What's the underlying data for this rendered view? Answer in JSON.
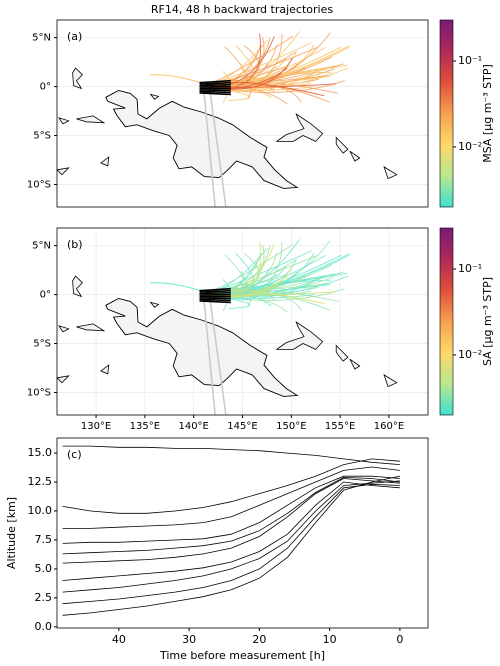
{
  "title": "RF14, 48 h backward trajectories",
  "chart_data": [
    {
      "type": "map",
      "panel_label": "(a)",
      "xlim": [
        126,
        164
      ],
      "ylim": [
        -12.3,
        6.8
      ],
      "yticks": [
        {
          "value": 5,
          "label": "5°N"
        },
        {
          "value": 0,
          "label": "0°"
        },
        {
          "value": -5,
          "label": "5°S"
        },
        {
          "value": -10,
          "label": "10°S"
        }
      ],
      "grid": true,
      "trajectory_colors": [
        "#fbc46c",
        "#f4a45c",
        "#e05a3c"
      ],
      "colorbar": {
        "label": "MSA [μg m⁻³ STP]",
        "clim": [
          0.002,
          0.3
        ],
        "log": true,
        "ticks": [
          {
            "value": 0.1,
            "label": "10⁻¹"
          },
          {
            "value": 0.01,
            "label": "10⁻²"
          }
        ],
        "colors": [
          "#40e0d0",
          "#b8e890",
          "#ffd766",
          "#f9a050",
          "#e0503a",
          "#b02858",
          "#7a1a78"
        ]
      }
    },
    {
      "type": "map",
      "panel_label": "(b)",
      "xlim": [
        126,
        164
      ],
      "ylim": [
        -12.3,
        6.8
      ],
      "xticks": [
        {
          "value": 130,
          "label": "130°E"
        },
        {
          "value": 135,
          "label": "135°E"
        },
        {
          "value": 140,
          "label": "140°E"
        },
        {
          "value": 145,
          "label": "145°E"
        },
        {
          "value": 150,
          "label": "150°E"
        },
        {
          "value": 155,
          "label": "155°E"
        },
        {
          "value": 160,
          "label": "160°E"
        }
      ],
      "yticks": [
        {
          "value": 5,
          "label": "5°N"
        },
        {
          "value": 0,
          "label": "0°"
        },
        {
          "value": -5,
          "label": "5°S"
        },
        {
          "value": -10,
          "label": "10°S"
        }
      ],
      "grid": true,
      "trajectory_colors": [
        "#6ee8d0",
        "#9fe6a8",
        "#d8e070"
      ],
      "colorbar": {
        "label": "SA [μg m⁻³ STP]",
        "clim": [
          0.002,
          0.3
        ],
        "log": true,
        "ticks": [
          {
            "value": 0.1,
            "label": "10⁻¹"
          },
          {
            "value": 0.01,
            "label": "10⁻²"
          }
        ],
        "colors": [
          "#40e0d0",
          "#b8e890",
          "#ffd766",
          "#f9a050",
          "#e0503a",
          "#b02858",
          "#7a1a78"
        ]
      }
    },
    {
      "type": "line",
      "panel_label": "(c)",
      "x_label": "Time before measurement [h]",
      "y_label": "Altitude [km]",
      "x": [
        48,
        44,
        40,
        36,
        32,
        28,
        24,
        20,
        16,
        12,
        8,
        4,
        0
      ],
      "xlim": [
        48.8,
        -4
      ],
      "xticks": [
        40,
        30,
        20,
        10,
        0
      ],
      "ylim": [
        -0.1,
        16.3
      ],
      "yticks": [
        {
          "value": 0,
          "label": "0.0"
        },
        2.5,
        {
          "value": 5,
          "label": "5.0"
        },
        7.5,
        {
          "value": 10,
          "label": "10.0"
        },
        12.5,
        {
          "value": 15,
          "label": "15.0"
        }
      ],
      "color": "#000000",
      "series": [
        {
          "values": [
            15.6,
            15.6,
            15.5,
            15.5,
            15.4,
            15.4,
            15.3,
            15.2,
            15.0,
            14.8,
            14.5,
            14.2,
            14.0
          ]
        },
        {
          "values": [
            10.4,
            10.0,
            9.8,
            9.8,
            10.0,
            10.3,
            10.8,
            11.5,
            12.2,
            13.0,
            14.0,
            14.5,
            14.3
          ]
        },
        {
          "values": [
            8.5,
            8.5,
            8.6,
            8.7,
            8.8,
            9.0,
            9.5,
            10.5,
            11.5,
            12.5,
            13.5,
            13.8,
            13.5
          ]
        },
        {
          "values": [
            7.2,
            7.3,
            7.3,
            7.4,
            7.5,
            7.6,
            8.0,
            9.0,
            10.5,
            12.0,
            13.0,
            13.0,
            12.8
          ]
        },
        {
          "values": [
            6.3,
            6.4,
            6.5,
            6.6,
            6.8,
            7.0,
            7.4,
            8.3,
            9.8,
            11.6,
            12.9,
            12.8,
            12.5
          ]
        },
        {
          "values": [
            5.5,
            5.6,
            5.7,
            5.8,
            6.0,
            6.3,
            6.8,
            7.8,
            9.5,
            11.5,
            12.8,
            12.6,
            12.4
          ]
        },
        {
          "values": [
            4.0,
            4.2,
            4.4,
            4.6,
            4.8,
            5.1,
            5.6,
            6.5,
            8.0,
            10.5,
            12.5,
            12.2,
            12.0
          ]
        },
        {
          "values": [
            3.0,
            3.2,
            3.4,
            3.7,
            4.0,
            4.4,
            5.0,
            5.9,
            7.4,
            10.0,
            12.2,
            12.4,
            12.6
          ]
        },
        {
          "values": [
            2.0,
            2.2,
            2.4,
            2.7,
            3.0,
            3.4,
            4.0,
            5.0,
            6.8,
            9.5,
            12.0,
            12.3,
            12.2
          ]
        },
        {
          "values": [
            1.0,
            1.2,
            1.5,
            1.8,
            2.2,
            2.6,
            3.2,
            4.2,
            6.0,
            9.0,
            11.8,
            12.5,
            13.0
          ]
        }
      ]
    }
  ]
}
